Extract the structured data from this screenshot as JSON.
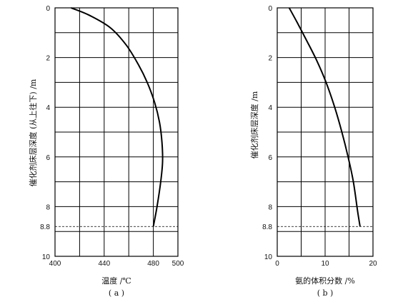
{
  "chart_data": [
    {
      "type": "line",
      "subtitle": "( a )",
      "xlabel": "温度 /℃",
      "ylabel": "催化剂床层深度 (从上往下) /m",
      "xlim": [
        400,
        500
      ],
      "ylim": [
        0,
        10
      ],
      "x_ticks": [
        "400",
        "440",
        "480",
        "500"
      ],
      "x_tick_values": [
        400,
        440,
        480,
        500
      ],
      "y_ticks": [
        "0",
        "2",
        "4",
        "6",
        "8",
        "8.8",
        "10"
      ],
      "y_tick_values": [
        0,
        2,
        4,
        6,
        8,
        8.8,
        10
      ],
      "reference_line": {
        "y": 8.8,
        "style": "dashed"
      },
      "grid": true,
      "series": [
        {
          "x": [
            413,
            428,
            445,
            458,
            468,
            475,
            481,
            485,
            487,
            487.5,
            486,
            483,
            480
          ],
          "y": [
            0,
            0.3,
            0.8,
            1.5,
            2.3,
            3.0,
            3.8,
            4.6,
            5.4,
            6.2,
            7.0,
            8.0,
            8.8
          ]
        }
      ]
    },
    {
      "type": "line",
      "subtitle": "( b )",
      "xlabel": "氨的体积分数 /%",
      "ylabel": "催化剂床层深度 /m",
      "xlim": [
        0,
        20
      ],
      "ylim": [
        0,
        10
      ],
      "x_ticks": [
        "0",
        "10",
        "20"
      ],
      "x_tick_values": [
        0,
        10,
        20
      ],
      "y_ticks": [
        "0",
        "2",
        "4",
        "6",
        "8",
        "8.8",
        "10"
      ],
      "y_tick_values": [
        0,
        2,
        4,
        6,
        8,
        8.8,
        10
      ],
      "reference_line": {
        "y": 8.8,
        "style": "dashed"
      },
      "grid": true,
      "series": [
        {
          "x": [
            2.5,
            4.2,
            6.1,
            8.2,
            10.2,
            12.0,
            13.5,
            14.8,
            15.9,
            16.8,
            17.3
          ],
          "y": [
            0,
            0.6,
            1.3,
            2.1,
            3.0,
            4.0,
            5.0,
            6.0,
            7.0,
            8.2,
            8.8
          ]
        }
      ]
    }
  ]
}
